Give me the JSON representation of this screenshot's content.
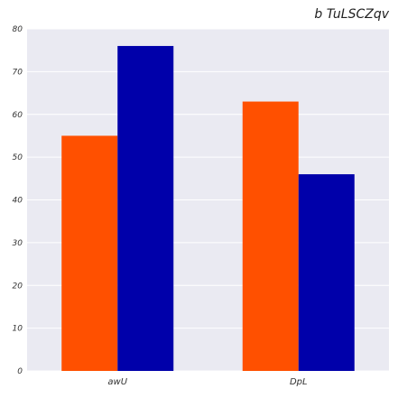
{
  "chart_data": {
    "type": "bar",
    "title": "b TuLSCZqv",
    "xlabel": "",
    "ylabel": "",
    "categories": [
      "awU",
      "DpL"
    ],
    "series": [
      {
        "values": [
          55,
          63
        ],
        "color": "#ff5000"
      },
      {
        "values": [
          76,
          46
        ],
        "color": "#0000aa"
      }
    ],
    "ylim": [
      0,
      80
    ],
    "yticks": [
      0,
      10,
      20,
      30,
      40,
      50,
      60,
      70,
      80
    ],
    "grid": true,
    "legend": "none"
  },
  "style": {
    "plot_bg": "#eaeaf2",
    "grid_color": "#ffffff"
  }
}
